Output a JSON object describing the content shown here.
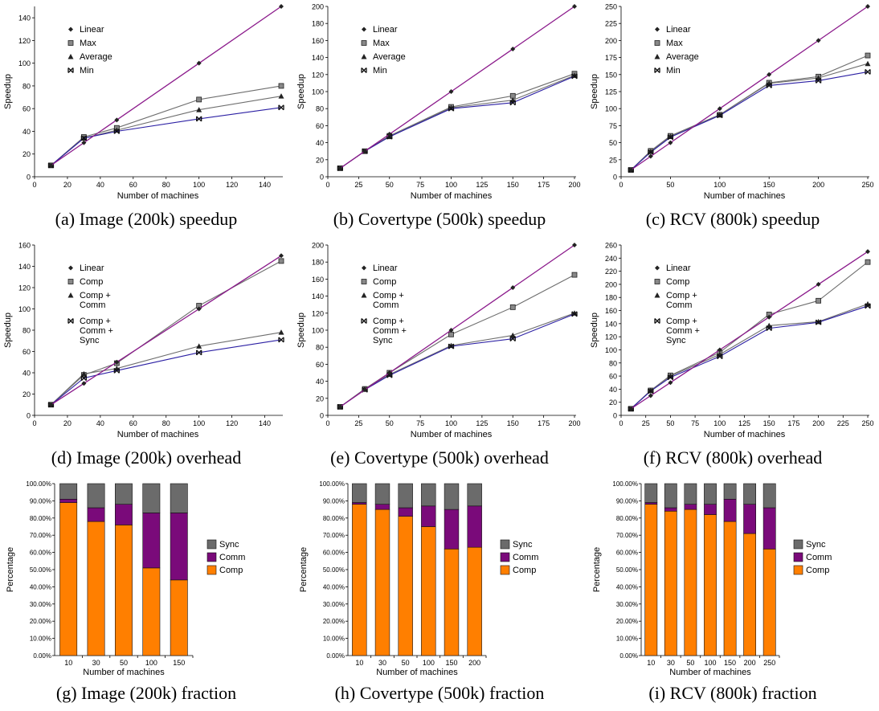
{
  "colors": {
    "linear": "#8b1a8b",
    "other_lines": "#6e6e6e",
    "min_line": "#2b1fa3",
    "sync": "#6b6b6b",
    "comm": "#7a0a7a",
    "comp": "#ff7f00"
  },
  "chart_data": [
    {
      "id": "a",
      "type": "line",
      "caption": "(a) Image (200k) speedup",
      "xlabel": "Number of machines",
      "ylabel": "Speedup",
      "xlim": [
        0,
        150
      ],
      "ylim": [
        0,
        150
      ],
      "xticks": [
        "0",
        "20",
        "40",
        "60",
        "80",
        "100",
        "120",
        "140"
      ],
      "yticks": [
        "0",
        "20",
        "40",
        "60",
        "80",
        "100",
        "120",
        "140"
      ],
      "x": [
        10,
        30,
        50,
        100,
        150
      ],
      "series": [
        {
          "name": "Linear",
          "marker": "diamond",
          "values": [
            10,
            30,
            50,
            100,
            150
          ]
        },
        {
          "name": "Max",
          "marker": "square",
          "values": [
            10,
            35,
            43,
            68,
            80
          ]
        },
        {
          "name": "Average",
          "marker": "triangle",
          "values": [
            10,
            34,
            41,
            59,
            71
          ]
        },
        {
          "name": "Min",
          "marker": "bowtie",
          "values": [
            10,
            34,
            40,
            51,
            61
          ]
        }
      ]
    },
    {
      "id": "b",
      "type": "line",
      "caption": "(b) Covertype (500k) speedup",
      "xlabel": "Number of machines",
      "ylabel": "Speedup",
      "xlim": [
        0,
        200
      ],
      "ylim": [
        0,
        200
      ],
      "xticks": [
        "0",
        "25",
        "50",
        "75",
        "100",
        "125",
        "150",
        "175",
        "200"
      ],
      "yticks": [
        "0",
        "20",
        "40",
        "60",
        "80",
        "100",
        "120",
        "140",
        "160",
        "180",
        "200"
      ],
      "x": [
        10,
        30,
        50,
        100,
        150,
        200
      ],
      "series": [
        {
          "name": "Linear",
          "marker": "diamond",
          "values": [
            10,
            30,
            50,
            100,
            150,
            200
          ]
        },
        {
          "name": "Max",
          "marker": "square",
          "values": [
            10,
            30,
            48,
            82,
            95,
            121
          ]
        },
        {
          "name": "Average",
          "marker": "triangle",
          "values": [
            10,
            30,
            47,
            81,
            90,
            119
          ]
        },
        {
          "name": "Min",
          "marker": "bowtie",
          "values": [
            10,
            30,
            47,
            80,
            87,
            118
          ]
        }
      ]
    },
    {
      "id": "c",
      "type": "line",
      "caption": "(c) RCV (800k) speedup",
      "xlabel": "Number of machines",
      "ylabel": "Speedup",
      "xlim": [
        0,
        250
      ],
      "ylim": [
        0,
        250
      ],
      "xticks": [
        "0",
        "50",
        "100",
        "150",
        "200",
        "250"
      ],
      "yticks": [
        "0",
        "25",
        "50",
        "75",
        "100",
        "125",
        "150",
        "175",
        "200",
        "225",
        "250"
      ],
      "x": [
        10,
        30,
        50,
        100,
        150,
        200,
        250
      ],
      "series": [
        {
          "name": "Linear",
          "marker": "diamond",
          "values": [
            10,
            30,
            50,
            100,
            150,
            200,
            250
          ]
        },
        {
          "name": "Max",
          "marker": "square",
          "values": [
            10,
            38,
            60,
            91,
            138,
            147,
            178
          ]
        },
        {
          "name": "Average",
          "marker": "triangle",
          "values": [
            10,
            37,
            59,
            91,
            137,
            145,
            166
          ]
        },
        {
          "name": "Min",
          "marker": "bowtie",
          "values": [
            10,
            36,
            58,
            90,
            134,
            141,
            154
          ]
        }
      ]
    },
    {
      "id": "d",
      "type": "line",
      "caption": "(d) Image (200k) overhead",
      "xlabel": "Number of machines",
      "ylabel": "Speedup",
      "xlim": [
        0,
        150
      ],
      "ylim": [
        0,
        160
      ],
      "xticks": [
        "0",
        "20",
        "40",
        "60",
        "80",
        "100",
        "120",
        "140"
      ],
      "yticks": [
        "0",
        "20",
        "40",
        "60",
        "80",
        "100",
        "120",
        "140",
        "160"
      ],
      "x": [
        10,
        30,
        50,
        100,
        150
      ],
      "series": [
        {
          "name": "Linear",
          "marker": "diamond",
          "values": [
            10,
            30,
            50,
            100,
            150
          ]
        },
        {
          "name": "Comp",
          "marker": "square",
          "values": [
            10,
            38,
            49,
            103,
            145
          ]
        },
        {
          "name": "Comp + Comm",
          "marker": "triangle",
          "values": [
            10,
            39,
            44,
            65,
            78
          ]
        },
        {
          "name": "Comp + Comm + Sync",
          "marker": "bowtie",
          "values": [
            10,
            35,
            42,
            59,
            71
          ]
        }
      ]
    },
    {
      "id": "e",
      "type": "line",
      "caption": "(e) Covertype (500k) overhead",
      "xlabel": "Number of machines",
      "ylabel": "Speedup",
      "xlim": [
        0,
        200
      ],
      "ylim": [
        0,
        200
      ],
      "xticks": [
        "0",
        "25",
        "50",
        "75",
        "100",
        "125",
        "150",
        "175",
        "200"
      ],
      "yticks": [
        "0",
        "20",
        "40",
        "60",
        "80",
        "100",
        "120",
        "140",
        "160",
        "180",
        "200"
      ],
      "x": [
        10,
        30,
        50,
        100,
        150,
        200
      ],
      "series": [
        {
          "name": "Linear",
          "marker": "diamond",
          "values": [
            10,
            30,
            50,
            100,
            150,
            200
          ]
        },
        {
          "name": "Comp",
          "marker": "square",
          "values": [
            10,
            31,
            50,
            95,
            127,
            165
          ]
        },
        {
          "name": "Comp + Comm",
          "marker": "triangle",
          "values": [
            10,
            31,
            48,
            82,
            94,
            120
          ]
        },
        {
          "name": "Comp + Comm + Sync",
          "marker": "bowtie",
          "values": [
            10,
            30,
            47,
            81,
            90,
            119
          ]
        }
      ]
    },
    {
      "id": "f",
      "type": "line",
      "caption": "(f) RCV (800k) overhead",
      "xlabel": "Number of machines",
      "ylabel": "Speedup",
      "xlim": [
        0,
        250
      ],
      "ylim": [
        0,
        260
      ],
      "xticks": [
        "0",
        "25",
        "50",
        "75",
        "100",
        "125",
        "150",
        "175",
        "200",
        "225",
        "250"
      ],
      "yticks": [
        "0",
        "20",
        "40",
        "60",
        "80",
        "100",
        "120",
        "140",
        "160",
        "180",
        "200",
        "220",
        "240",
        "260"
      ],
      "x": [
        10,
        30,
        50,
        100,
        150,
        200,
        250
      ],
      "series": [
        {
          "name": "Linear",
          "marker": "diamond",
          "values": [
            10,
            30,
            50,
            100,
            150,
            200,
            250
          ]
        },
        {
          "name": "Comp",
          "marker": "square",
          "values": [
            10,
            38,
            61,
            96,
            154,
            175,
            234
          ]
        },
        {
          "name": "Comp + Comm",
          "marker": "triangle",
          "values": [
            10,
            38,
            60,
            93,
            137,
            143,
            170
          ]
        },
        {
          "name": "Comp + Comm + Sync",
          "marker": "bowtie",
          "values": [
            10,
            37,
            58,
            90,
            133,
            142,
            167
          ]
        }
      ]
    },
    {
      "id": "g",
      "type": "bar",
      "stacked": true,
      "caption": "(g) Image (200k) fraction",
      "xlabel": "Number of machines",
      "ylabel": "Percentage",
      "ylim": [
        0,
        100
      ],
      "yticks": [
        "0.00%",
        "10.00%",
        "20.00%",
        "30.00%",
        "40.00%",
        "50.00%",
        "60.00%",
        "70.00%",
        "80.00%",
        "90.00%",
        "100.00%"
      ],
      "categories": [
        "10",
        "30",
        "50",
        "100",
        "150"
      ],
      "series": [
        {
          "name": "Comp",
          "values": [
            89,
            78,
            76,
            51,
            44
          ]
        },
        {
          "name": "Comm",
          "values": [
            2,
            8,
            12,
            32,
            39
          ]
        },
        {
          "name": "Sync",
          "values": [
            9,
            14,
            12,
            17,
            17
          ]
        }
      ]
    },
    {
      "id": "h",
      "type": "bar",
      "stacked": true,
      "caption": "(h) Covertype (500k) fraction",
      "xlabel": "Number of machines",
      "ylabel": "Percentage",
      "ylim": [
        0,
        100
      ],
      "yticks": [
        "0.00%",
        "10.00%",
        "20.00%",
        "30.00%",
        "40.00%",
        "50.00%",
        "60.00%",
        "70.00%",
        "80.00%",
        "90.00%",
        "100.00%"
      ],
      "categories": [
        "10",
        "30",
        "50",
        "100",
        "150",
        "200"
      ],
      "series": [
        {
          "name": "Comp",
          "values": [
            88,
            85,
            81,
            75,
            62,
            63
          ]
        },
        {
          "name": "Comm",
          "values": [
            1,
            3,
            5,
            12,
            23,
            24
          ]
        },
        {
          "name": "Sync",
          "values": [
            11,
            12,
            14,
            13,
            15,
            13
          ]
        }
      ]
    },
    {
      "id": "i",
      "type": "bar",
      "stacked": true,
      "caption": "(i) RCV (800k) fraction",
      "xlabel": "Number of machines",
      "ylabel": "Percentage",
      "ylim": [
        0,
        100
      ],
      "yticks": [
        "0.00%",
        "10.00%",
        "20.00%",
        "30.00%",
        "40.00%",
        "50.00%",
        "60.00%",
        "70.00%",
        "80.00%",
        "90.00%",
        "100.00%"
      ],
      "categories": [
        "10",
        "30",
        "50",
        "100",
        "150",
        "200",
        "250"
      ],
      "series": [
        {
          "name": "Comp",
          "values": [
            88,
            84,
            85,
            82,
            78,
            71,
            62
          ]
        },
        {
          "name": "Comm",
          "values": [
            1,
            2,
            3,
            6,
            13,
            17,
            24
          ]
        },
        {
          "name": "Sync",
          "values": [
            11,
            14,
            12,
            12,
            9,
            12,
            14
          ]
        }
      ]
    }
  ]
}
